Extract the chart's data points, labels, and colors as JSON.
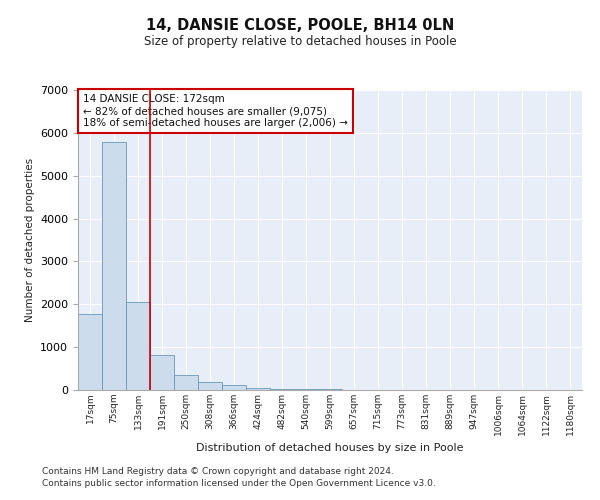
{
  "title": "14, DANSIE CLOSE, POOLE, BH14 0LN",
  "subtitle": "Size of property relative to detached houses in Poole",
  "xlabel": "Distribution of detached houses by size in Poole",
  "ylabel": "Number of detached properties",
  "bin_labels": [
    "17sqm",
    "75sqm",
    "133sqm",
    "191sqm",
    "250sqm",
    "308sqm",
    "366sqm",
    "424sqm",
    "482sqm",
    "540sqm",
    "599sqm",
    "657sqm",
    "715sqm",
    "773sqm",
    "831sqm",
    "889sqm",
    "947sqm",
    "1006sqm",
    "1064sqm",
    "1122sqm",
    "1180sqm"
  ],
  "bar_values": [
    1780,
    5780,
    2060,
    820,
    340,
    185,
    110,
    55,
    35,
    20,
    15,
    10,
    0,
    0,
    0,
    0,
    0,
    0,
    0,
    0,
    0
  ],
  "bar_color": "#ccdcec",
  "bar_edge_color": "#6699bb",
  "red_line_x": 2.5,
  "annotation_text": "14 DANSIE CLOSE: 172sqm\n← 82% of detached houses are smaller (9,075)\n18% of semi-detached houses are larger (2,006) →",
  "annotation_box_color": "white",
  "annotation_box_edge": "#cc0000",
  "ylim": [
    0,
    7000
  ],
  "background_color": "#e8eef8",
  "grid_color": "#ffffff",
  "footer1": "Contains HM Land Registry data © Crown copyright and database right 2024.",
  "footer2": "Contains public sector information licensed under the Open Government Licence v3.0."
}
